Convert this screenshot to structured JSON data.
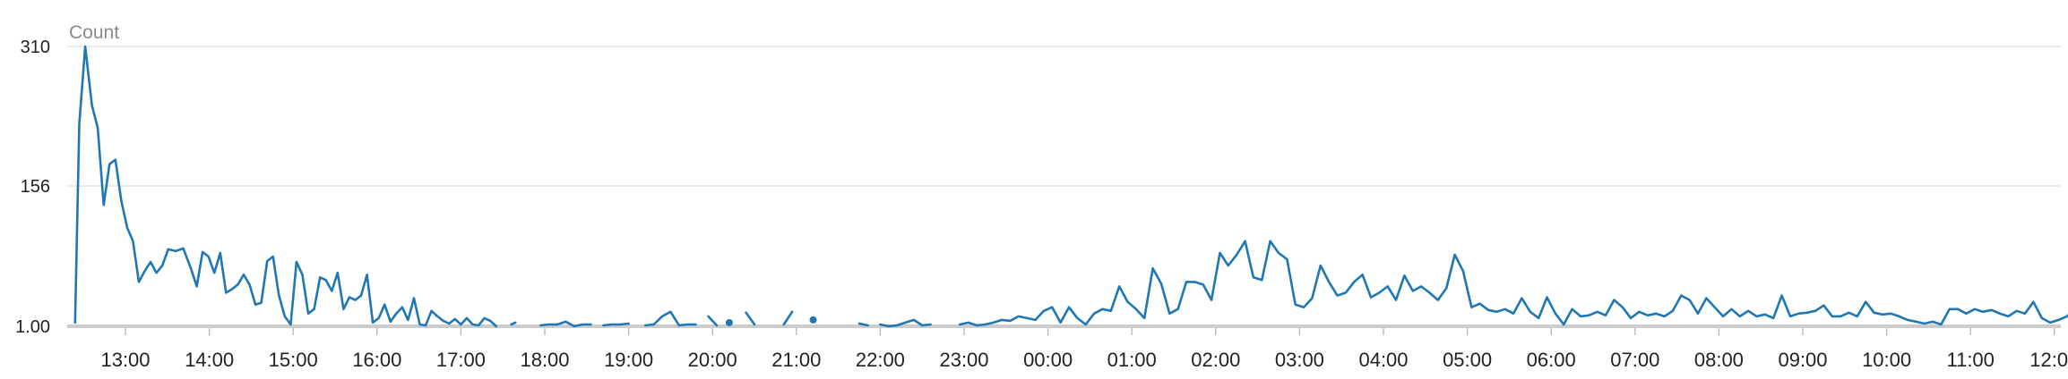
{
  "chart_data": {
    "type": "line",
    "ylabel": "Count",
    "y_ticks": [
      "310",
      "156",
      "1.00"
    ],
    "y_tick_values": [
      310,
      156,
      1
    ],
    "ylim": [
      1,
      310
    ],
    "x_ticks": [
      "13:00",
      "14:00",
      "15:00",
      "16:00",
      "17:00",
      "18:00",
      "19:00",
      "20:00",
      "21:00",
      "22:00",
      "23:00",
      "00:00",
      "01:00",
      "02:00",
      "03:00",
      "04:00",
      "05:00",
      "06:00",
      "07:00",
      "08:00",
      "09:00",
      "10:00",
      "11:00",
      "12:00"
    ],
    "x_unit": "hours since 13:00 of first day",
    "xlim": [
      -0.61,
      23.35
    ],
    "grid": "horizontal",
    "legend": "none",
    "colors": {
      "line": "#1f77b4",
      "grid": "#e6e6e6",
      "axis": "#cccccc"
    },
    "series": [
      {
        "points": [
          [
            -0.6,
            5
          ],
          [
            -0.55,
            225
          ],
          [
            -0.48,
            310
          ],
          [
            -0.4,
            245
          ],
          [
            -0.33,
            220
          ],
          [
            -0.26,
            135
          ],
          [
            -0.19,
            180
          ],
          [
            -0.12,
            185
          ],
          [
            -0.05,
            140
          ],
          [
            0.02,
            110
          ],
          [
            0.09,
            95
          ],
          [
            0.16,
            50
          ],
          [
            0.23,
            62
          ],
          [
            0.3,
            72
          ],
          [
            0.37,
            60
          ],
          [
            0.44,
            68
          ],
          [
            0.51,
            86
          ],
          [
            0.6,
            84
          ],
          [
            0.69,
            87
          ],
          [
            0.78,
            65
          ],
          [
            0.85,
            45
          ],
          [
            0.92,
            83
          ],
          [
            0.99,
            78
          ],
          [
            1.06,
            60
          ],
          [
            1.13,
            82
          ],
          [
            1.2,
            38
          ],
          [
            1.27,
            42
          ],
          [
            1.34,
            47
          ],
          [
            1.41,
            58
          ],
          [
            1.48,
            47
          ],
          [
            1.55,
            25
          ],
          [
            1.62,
            27
          ],
          [
            1.69,
            73
          ],
          [
            1.76,
            78
          ],
          [
            1.83,
            35
          ],
          [
            1.9,
            12
          ],
          [
            1.97,
            3
          ],
          [
            2.04,
            72
          ],
          [
            2.11,
            58
          ],
          [
            2.18,
            15
          ],
          [
            2.25,
            20
          ],
          [
            2.32,
            55
          ],
          [
            2.39,
            52
          ],
          [
            2.46,
            40
          ],
          [
            2.53,
            60
          ],
          [
            2.6,
            20
          ],
          [
            2.67,
            33
          ],
          [
            2.74,
            30
          ],
          [
            2.81,
            35
          ],
          [
            2.88,
            58
          ],
          [
            2.95,
            5
          ],
          [
            3.02,
            10
          ],
          [
            3.09,
            25
          ],
          [
            3.16,
            6
          ],
          [
            3.23,
            15
          ],
          [
            3.3,
            22
          ],
          [
            3.37,
            8
          ],
          [
            3.44,
            32
          ],
          [
            3.51,
            3
          ],
          [
            3.58,
            2
          ],
          [
            3.65,
            18
          ],
          [
            3.72,
            12
          ],
          [
            3.79,
            7
          ],
          [
            3.86,
            4
          ],
          [
            3.93,
            9
          ],
          [
            4.0,
            3
          ],
          [
            4.07,
            10
          ],
          [
            4.14,
            3
          ],
          [
            4.21,
            2
          ],
          [
            4.28,
            10
          ],
          [
            4.35,
            7
          ],
          [
            4.42,
            1
          ],
          null,
          [
            4.6,
            3
          ],
          [
            4.65,
            5
          ],
          null,
          [
            4.95,
            2
          ],
          [
            5.05,
            3
          ],
          [
            5.15,
            3
          ],
          [
            5.25,
            6
          ],
          [
            5.35,
            1
          ],
          [
            5.45,
            3
          ],
          [
            5.55,
            3
          ],
          null,
          [
            5.7,
            2
          ],
          [
            5.8,
            3
          ],
          [
            5.9,
            3
          ],
          [
            6.0,
            4
          ],
          null,
          [
            6.2,
            2
          ],
          [
            6.3,
            3
          ],
          [
            6.4,
            12
          ],
          [
            6.5,
            17
          ],
          [
            6.6,
            2
          ],
          [
            6.7,
            3
          ],
          [
            6.8,
            3
          ],
          null,
          [
            6.95,
            12
          ],
          [
            7.05,
            2
          ],
          null,
          [
            7.4,
            16
          ],
          [
            7.5,
            3
          ],
          null,
          [
            7.85,
            3
          ],
          [
            7.95,
            17
          ],
          null,
          [
            8.2,
            8
          ],
          null,
          [
            8.75,
            4
          ],
          [
            8.85,
            2
          ],
          null,
          [
            9.0,
            3
          ],
          [
            9.1,
            1
          ],
          [
            9.2,
            2
          ],
          [
            9.3,
            5
          ],
          [
            9.4,
            8
          ],
          [
            9.5,
            2
          ],
          [
            9.6,
            3
          ],
          null,
          [
            9.95,
            3
          ],
          [
            10.05,
            5
          ],
          [
            10.15,
            2
          ],
          [
            10.25,
            3
          ],
          [
            10.35,
            5
          ],
          [
            10.45,
            8
          ],
          [
            10.55,
            7
          ],
          [
            10.65,
            12
          ],
          [
            10.75,
            10
          ],
          [
            10.85,
            8
          ],
          [
            10.95,
            18
          ],
          [
            11.05,
            22
          ],
          [
            11.15,
            5
          ],
          [
            11.25,
            22
          ],
          [
            11.35,
            10
          ],
          [
            11.45,
            3
          ],
          [
            11.55,
            15
          ],
          [
            11.65,
            20
          ],
          [
            11.75,
            18
          ],
          [
            11.85,
            45
          ],
          [
            11.95,
            28
          ],
          [
            12.05,
            20
          ],
          [
            12.15,
            10
          ],
          [
            12.25,
            65
          ],
          [
            12.35,
            48
          ],
          [
            12.45,
            15
          ],
          [
            12.55,
            20
          ],
          [
            12.65,
            50
          ],
          [
            12.75,
            50
          ],
          [
            12.85,
            47
          ],
          [
            12.95,
            30
          ],
          [
            13.05,
            82
          ],
          [
            13.15,
            68
          ],
          [
            13.25,
            80
          ],
          [
            13.35,
            95
          ],
          [
            13.45,
            55
          ],
          [
            13.55,
            52
          ],
          [
            13.65,
            95
          ],
          [
            13.75,
            82
          ],
          [
            13.85,
            75
          ],
          [
            13.95,
            25
          ],
          [
            14.05,
            22
          ],
          [
            14.15,
            32
          ],
          [
            14.25,
            68
          ],
          [
            14.35,
            50
          ],
          [
            14.45,
            35
          ],
          [
            14.55,
            38
          ],
          [
            14.65,
            50
          ],
          [
            14.75,
            58
          ],
          [
            14.85,
            33
          ],
          [
            14.95,
            38
          ],
          [
            15.05,
            45
          ],
          [
            15.15,
            30
          ],
          [
            15.25,
            57
          ],
          [
            15.35,
            40
          ],
          [
            15.45,
            45
          ],
          [
            15.55,
            38
          ],
          [
            15.65,
            30
          ],
          [
            15.75,
            43
          ],
          [
            15.85,
            80
          ],
          [
            15.95,
            62
          ],
          [
            16.05,
            22
          ],
          [
            16.15,
            26
          ],
          [
            16.25,
            19
          ],
          [
            16.35,
            17
          ],
          [
            16.45,
            20
          ],
          [
            16.55,
            15
          ],
          [
            16.65,
            32
          ],
          [
            16.75,
            17
          ],
          [
            16.85,
            10
          ],
          [
            16.95,
            33
          ],
          [
            17.05,
            15
          ],
          [
            17.15,
            3
          ],
          [
            17.25,
            20
          ],
          [
            17.35,
            12
          ],
          [
            17.45,
            13
          ],
          [
            17.55,
            17
          ],
          [
            17.65,
            13
          ],
          [
            17.75,
            30
          ],
          [
            17.85,
            22
          ],
          [
            17.95,
            10
          ],
          [
            18.05,
            17
          ],
          [
            18.15,
            13
          ],
          [
            18.25,
            15
          ],
          [
            18.35,
            12
          ],
          [
            18.45,
            18
          ],
          [
            18.55,
            35
          ],
          [
            18.65,
            30
          ],
          [
            18.75,
            15
          ],
          [
            18.85,
            32
          ],
          [
            18.95,
            22
          ],
          [
            19.05,
            12
          ],
          [
            19.15,
            20
          ],
          [
            19.25,
            12
          ],
          [
            19.35,
            18
          ],
          [
            19.45,
            12
          ],
          [
            19.55,
            14
          ],
          [
            19.65,
            10
          ],
          [
            19.75,
            35
          ],
          [
            19.85,
            12
          ],
          [
            19.95,
            15
          ],
          [
            20.05,
            16
          ],
          [
            20.15,
            18
          ],
          [
            20.25,
            24
          ],
          [
            20.35,
            12
          ],
          [
            20.45,
            12
          ],
          [
            20.55,
            16
          ],
          [
            20.65,
            12
          ],
          [
            20.75,
            28
          ],
          [
            20.85,
            16
          ],
          [
            20.95,
            14
          ],
          [
            21.05,
            15
          ],
          [
            21.15,
            12
          ],
          [
            21.25,
            8
          ],
          [
            21.35,
            6
          ],
          [
            21.45,
            4
          ],
          [
            21.55,
            6
          ],
          [
            21.65,
            3
          ],
          [
            21.75,
            20
          ],
          [
            21.85,
            20
          ],
          [
            21.95,
            15
          ],
          [
            22.05,
            20
          ],
          [
            22.15,
            17
          ],
          [
            22.25,
            19
          ],
          [
            22.35,
            15
          ],
          [
            22.45,
            12
          ],
          [
            22.55,
            18
          ],
          [
            22.65,
            15
          ],
          [
            22.75,
            28
          ],
          [
            22.85,
            10
          ],
          [
            22.95,
            5
          ],
          [
            23.05,
            8
          ],
          [
            23.15,
            12
          ],
          [
            23.25,
            20
          ],
          [
            23.35,
            8
          ]
        ]
      },
      {
        "points": [
          [
            7.2,
            5
          ]
        ]
      }
    ]
  }
}
